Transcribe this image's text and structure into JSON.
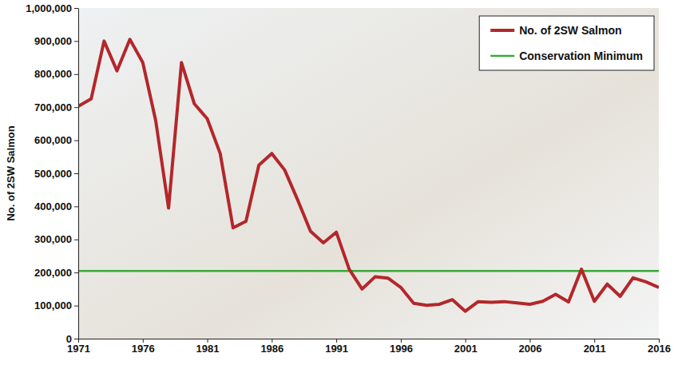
{
  "chart_data": {
    "type": "line",
    "y_label": "No. of 2SW Salmon",
    "x": [
      1971,
      1972,
      1973,
      1974,
      1975,
      1976,
      1977,
      1978,
      1979,
      1980,
      1981,
      1982,
      1983,
      1984,
      1985,
      1986,
      1987,
      1988,
      1989,
      1990,
      1991,
      1992,
      1993,
      1994,
      1995,
      1996,
      1997,
      1998,
      1999,
      2000,
      2001,
      2002,
      2003,
      2004,
      2005,
      2006,
      2007,
      2008,
      2009,
      2010,
      2011,
      2012,
      2013,
      2014,
      2015,
      2016
    ],
    "series": [
      {
        "name": "No. of 2SW Salmon",
        "color": "#b3272b",
        "values": [
          703000,
          725000,
          900000,
          810000,
          905000,
          835000,
          660000,
          395000,
          835000,
          710000,
          665000,
          560000,
          335000,
          355000,
          525000,
          560000,
          510000,
          420000,
          325000,
          290000,
          322000,
          210000,
          150000,
          187000,
          183000,
          155000,
          107000,
          101000,
          104000,
          118000,
          83000,
          112000,
          110000,
          112000,
          108000,
          104000,
          113000,
          134000,
          111000,
          210000,
          113000,
          165000,
          128000,
          184000,
          172000,
          155000
        ]
      },
      {
        "name": "Conservation Minimum",
        "color": "#3aa83a",
        "values": [
          205000,
          205000,
          205000,
          205000,
          205000,
          205000,
          205000,
          205000,
          205000,
          205000,
          205000,
          205000,
          205000,
          205000,
          205000,
          205000,
          205000,
          205000,
          205000,
          205000,
          205000,
          205000,
          205000,
          205000,
          205000,
          205000,
          205000,
          205000,
          205000,
          205000,
          205000,
          205000,
          205000,
          205000,
          205000,
          205000,
          205000,
          205000,
          205000,
          205000,
          205000,
          205000,
          205000,
          205000,
          205000,
          205000
        ]
      }
    ],
    "xlim": [
      1971,
      2016
    ],
    "xticks": [
      1971,
      1976,
      1981,
      1986,
      1991,
      1996,
      2001,
      2006,
      2011,
      2016
    ],
    "ylim": [
      0,
      1000000
    ],
    "yticks": [
      {
        "value": 0,
        "label": "0"
      },
      {
        "value": 100000,
        "label": "100,000"
      },
      {
        "value": 200000,
        "label": "200,000"
      },
      {
        "value": 300000,
        "label": "300,000"
      },
      {
        "value": 400000,
        "label": "400,000"
      },
      {
        "value": 500000,
        "label": "500,000"
      },
      {
        "value": 600000,
        "label": "600,000"
      },
      {
        "value": 700000,
        "label": "700,000"
      },
      {
        "value": 800000,
        "label": "800,000"
      },
      {
        "value": 900000,
        "label": "900,000"
      },
      {
        "value": 1000000,
        "label": "1,000,000"
      }
    ],
    "grid": false,
    "legend": "upper right"
  }
}
